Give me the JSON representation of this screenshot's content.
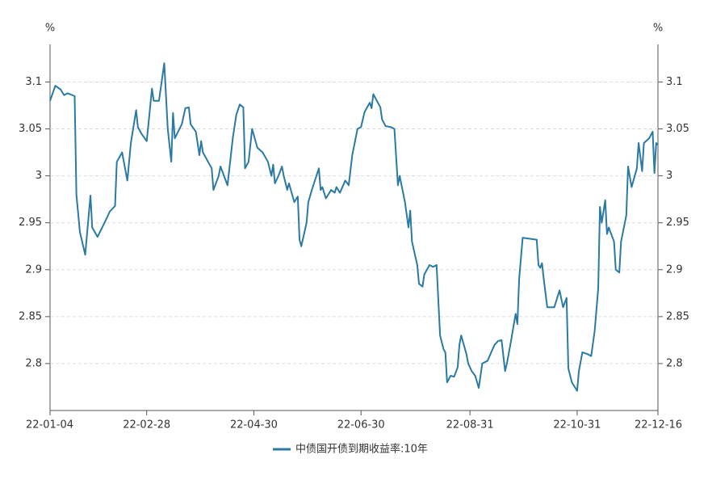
{
  "chart_data": {
    "type": "line",
    "y_unit": "%",
    "x": [
      "22-01-04",
      "22-01-07",
      "22-01-10",
      "22-01-12",
      "22-01-14",
      "22-01-18",
      "22-01-19",
      "22-01-21",
      "22-01-24",
      "22-01-27",
      "22-01-28",
      "22-01-31",
      "22-02-04",
      "22-02-07",
      "22-02-10",
      "22-02-11",
      "22-02-14",
      "22-02-17",
      "22-02-19",
      "22-02-22",
      "22-02-23",
      "22-02-25",
      "22-02-28",
      "22-03-01",
      "22-03-03",
      "22-03-04",
      "22-03-07",
      "22-03-10",
      "22-03-12",
      "22-03-14",
      "22-03-15",
      "22-03-16",
      "22-03-20",
      "22-03-22",
      "22-03-24",
      "22-03-25",
      "22-03-28",
      "22-03-30",
      "22-03-31",
      "22-04-01",
      "22-04-06",
      "22-04-07",
      "22-04-10",
      "22-04-11",
      "22-04-13",
      "22-04-15",
      "22-04-18",
      "22-04-20",
      "22-04-22",
      "22-04-24",
      "22-04-25",
      "22-04-27",
      "22-04-29",
      "22-05-02",
      "22-05-05",
      "22-05-08",
      "22-05-10",
      "22-05-11",
      "22-05-12",
      "22-05-14",
      "22-05-16",
      "22-05-17",
      "22-05-19",
      "22-05-20",
      "22-05-23",
      "22-05-25",
      "22-05-26",
      "22-05-27",
      "22-05-30",
      "22-05-31",
      "22-06-02",
      "22-06-06",
      "22-06-07",
      "22-06-08",
      "22-06-10",
      "22-06-13",
      "22-06-15",
      "22-06-16",
      "22-06-18",
      "22-06-21",
      "22-06-23",
      "22-06-25",
      "22-06-28",
      "22-06-30",
      "22-07-02",
      "22-07-05",
      "22-07-06",
      "22-07-07",
      "22-07-09",
      "22-07-11",
      "22-07-12",
      "22-07-14",
      "22-07-17",
      "22-07-19",
      "22-07-21",
      "22-07-22",
      "22-07-25",
      "22-07-27",
      "22-07-28",
      "22-07-29",
      "22-08-01",
      "22-08-02",
      "22-08-04",
      "22-08-05",
      "22-08-08",
      "22-08-10",
      "22-08-12",
      "22-08-14",
      "22-08-16",
      "22-08-17",
      "22-08-18",
      "22-08-20",
      "22-08-22",
      "22-08-24",
      "22-08-25",
      "22-08-26",
      "22-08-29",
      "22-08-30",
      "22-09-01",
      "22-09-03",
      "22-09-05",
      "22-09-07",
      "22-09-10",
      "22-09-14",
      "22-09-16",
      "22-09-18",
      "22-09-20",
      "22-09-21",
      "22-09-23",
      "22-09-26",
      "22-09-27",
      "22-09-28",
      "22-09-30",
      "22-10-08",
      "22-10-09",
      "22-10-10",
      "22-10-11",
      "22-10-12",
      "22-10-14",
      "22-10-18",
      "22-10-21",
      "22-10-23",
      "22-10-25",
      "22-10-26",
      "22-10-28",
      "22-10-31",
      "22-11-01",
      "22-11-03",
      "22-11-06",
      "22-11-08",
      "22-11-10",
      "22-11-12",
      "22-11-13",
      "22-11-14",
      "22-11-16",
      "22-11-17",
      "22-11-18",
      "22-11-21",
      "22-11-22",
      "22-11-24",
      "22-11-25",
      "22-11-28",
      "22-11-29",
      "22-12-01",
      "22-12-04",
      "22-12-05",
      "22-12-07",
      "22-12-08",
      "22-12-11",
      "22-12-13",
      "22-12-14",
      "22-12-15",
      "22-12-16"
    ],
    "series": [
      {
        "name": "中债国开债到期收益率:10年",
        "color": "#2a7aa3",
        "values": [
          3.08,
          3.096,
          3.092,
          3.086,
          3.088,
          3.085,
          2.98,
          2.94,
          2.916,
          2.979,
          2.945,
          2.935,
          2.95,
          2.962,
          2.968,
          3.015,
          3.025,
          2.995,
          3.035,
          3.07,
          3.052,
          3.045,
          3.037,
          3.055,
          3.093,
          3.08,
          3.08,
          3.12,
          3.05,
          3.015,
          3.067,
          3.04,
          3.055,
          3.072,
          3.073,
          3.055,
          3.047,
          3.022,
          3.037,
          3.025,
          3.008,
          2.985,
          3.0,
          3.01,
          3.0,
          2.99,
          3.04,
          3.065,
          3.076,
          3.073,
          3.008,
          3.015,
          3.05,
          3.03,
          3.025,
          3.015,
          3.0,
          3.012,
          2.992,
          3.0,
          3.01,
          3.0,
          2.985,
          2.992,
          2.972,
          2.978,
          2.932,
          2.925,
          2.95,
          2.972,
          2.985,
          3.008,
          2.985,
          2.988,
          2.976,
          2.985,
          2.982,
          2.988,
          2.982,
          2.995,
          2.99,
          3.022,
          3.05,
          3.052,
          3.068,
          3.078,
          3.072,
          3.087,
          3.08,
          3.073,
          3.06,
          3.053,
          3.052,
          3.05,
          2.99,
          3.0,
          2.972,
          2.945,
          2.963,
          2.93,
          2.905,
          2.885,
          2.882,
          2.895,
          2.905,
          2.903,
          2.905,
          2.83,
          2.815,
          2.812,
          2.78,
          2.787,
          2.786,
          2.796,
          2.82,
          2.83,
          2.81,
          2.8,
          2.792,
          2.787,
          2.774,
          2.8,
          2.803,
          2.82,
          2.824,
          2.825,
          2.792,
          2.8,
          2.82,
          2.853,
          2.842,
          2.89,
          2.934,
          2.932,
          2.905,
          2.902,
          2.907,
          2.89,
          2.86,
          2.86,
          2.878,
          2.86,
          2.87,
          2.795,
          2.78,
          2.771,
          2.792,
          2.812,
          2.81,
          2.808,
          2.835,
          2.88,
          2.967,
          2.95,
          2.974,
          2.938,
          2.945,
          2.93,
          2.9,
          2.897,
          2.93,
          2.958,
          3.01,
          2.988,
          3.008,
          3.035,
          3.005,
          3.035,
          3.04,
          3.047,
          3.003,
          3.035,
          3.033
        ]
      }
    ],
    "xlim": [
      "22-01-04",
      "22-12-16"
    ],
    "xticks": [
      "22-01-04",
      "22-02-28",
      "22-04-30",
      "22-06-30",
      "22-08-31",
      "22-10-31",
      "22-12-16"
    ],
    "ylim": [
      2.75,
      3.14
    ],
    "yticks": [
      2.8,
      2.85,
      2.9,
      2.95,
      3,
      3.05,
      3.1
    ],
    "grid": true,
    "legend": "bottom"
  }
}
